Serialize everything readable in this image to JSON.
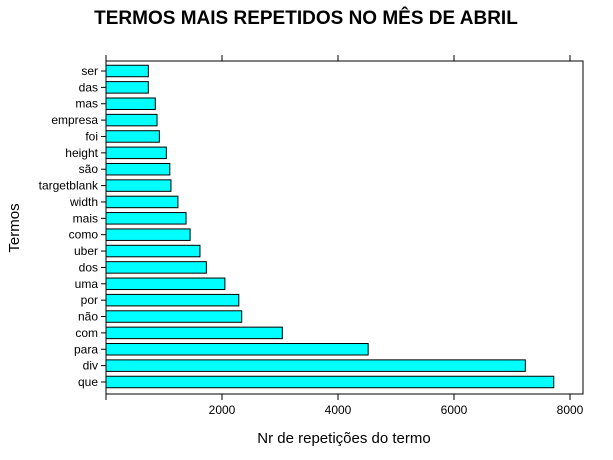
{
  "chart_data": {
    "type": "bar",
    "orientation": "horizontal",
    "title": "TERMOS MAIS REPETIDOS NO MÊS DE ABRIL",
    "xlabel": "Nr de repetições do termo",
    "ylabel": "Termos",
    "categories": [
      "que",
      "div",
      "para",
      "com",
      "não",
      "por",
      "uma",
      "dos",
      "uber",
      "como",
      "mais",
      "width",
      "targetblank",
      "são",
      "height",
      "foi",
      "empresa",
      "mas",
      "das",
      "ser"
    ],
    "values": [
      7720,
      7230,
      4520,
      3040,
      2340,
      2290,
      2050,
      1730,
      1620,
      1450,
      1380,
      1240,
      1120,
      1100,
      1040,
      920,
      880,
      850,
      730,
      730
    ],
    "xlim": [
      0,
      8000
    ],
    "xticks": [
      0,
      2000,
      4000,
      6000,
      8000
    ],
    "xtick_labels": [
      "",
      "2000",
      "4000",
      "6000",
      "8000"
    ],
    "bar_color": "#00ffff",
    "bar_edge_color": "#000000",
    "grid": false,
    "legend": "none"
  }
}
